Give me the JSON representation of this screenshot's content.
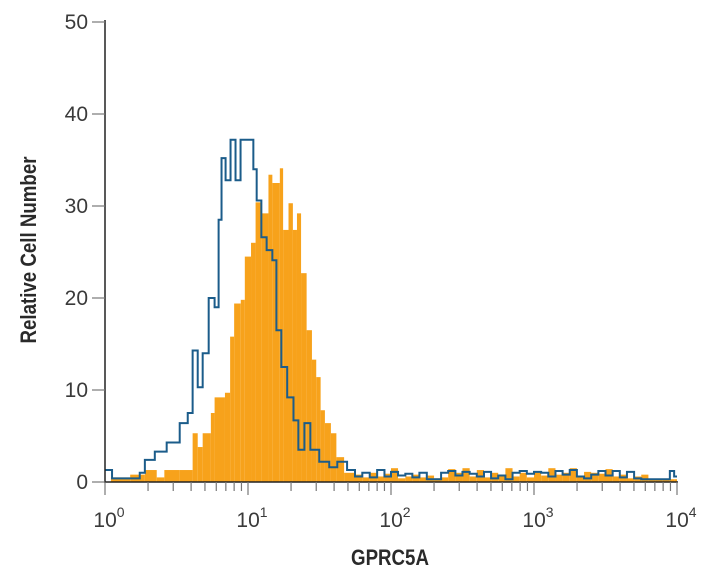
{
  "chart_data": {
    "type": "histogram",
    "title": "",
    "xlabel": "GPRC5A",
    "ylabel": "Relative Cell Number",
    "x_scale": "log",
    "xlim": [
      1,
      10000
    ],
    "ylim": [
      0,
      50
    ],
    "grid": false,
    "y_ticks": [
      "0",
      "10",
      "20",
      "30",
      "40",
      "50"
    ],
    "x_ticks": [
      {
        "base": "10",
        "exp": "0"
      },
      {
        "base": "10",
        "exp": "1"
      },
      {
        "base": "10",
        "exp": "2"
      },
      {
        "base": "10",
        "exp": "3"
      },
      {
        "base": "10",
        "exp": "4"
      }
    ],
    "series": [
      {
        "style": "filled",
        "color": "#F7A21B",
        "points": [
          [
            1.1,
            0.5
          ],
          [
            1.5,
            0.8
          ],
          [
            1.9,
            1.3
          ],
          [
            2.3,
            0.5
          ],
          [
            2.6,
            1.3
          ],
          [
            3.3,
            1.3
          ],
          [
            4.1,
            5.3
          ],
          [
            4.45,
            3.8
          ],
          [
            4.82,
            5.3
          ],
          [
            5.5,
            7.5
          ],
          [
            5.84,
            9.2
          ],
          [
            6.9,
            9.7
          ],
          [
            7.5,
            15.8
          ],
          [
            8.0,
            19.4
          ],
          [
            8.9,
            19.8
          ],
          [
            9.5,
            24.5
          ],
          [
            10.5,
            26
          ],
          [
            11.3,
            30.4
          ],
          [
            12.4,
            29.2
          ],
          [
            13.9,
            33.4
          ],
          [
            14.8,
            32.5
          ],
          [
            16.7,
            34.1
          ],
          [
            17.6,
            27.4
          ],
          [
            19.2,
            30.3
          ],
          [
            20.6,
            27.4
          ],
          [
            22.0,
            29.2
          ],
          [
            23.5,
            22.7
          ],
          [
            25.7,
            16.5
          ],
          [
            28.0,
            13.3
          ],
          [
            30.0,
            11.4
          ],
          [
            32.2,
            7.8
          ],
          [
            34.5,
            6.4
          ],
          [
            38,
            5.3
          ],
          [
            41.5,
            2.7
          ],
          [
            47,
            1.0
          ],
          [
            56,
            0.8
          ],
          [
            63,
            0.5
          ],
          [
            71,
            1.0
          ],
          [
            80,
            0.6
          ],
          [
            90,
            0.9
          ],
          [
            100,
            1.5
          ],
          [
            112,
            0.4
          ],
          [
            126,
            0.6
          ],
          [
            141,
            0.8
          ],
          [
            158,
            0.5
          ],
          [
            178,
            0.7
          ],
          [
            200,
            0.4
          ],
          [
            224,
            0.5
          ],
          [
            251,
            1.4
          ],
          [
            282,
            1.0
          ],
          [
            316,
            1.5
          ],
          [
            355,
            0.6
          ],
          [
            398,
            1.3
          ],
          [
            447,
            0.5
          ],
          [
            501,
            1.0
          ],
          [
            562,
            0.8
          ],
          [
            631,
            1.5
          ],
          [
            708,
            0.6
          ],
          [
            794,
            1.0
          ],
          [
            891,
            0.5
          ],
          [
            1000,
            1.2
          ],
          [
            1122,
            0.7
          ],
          [
            1259,
            1.5
          ],
          [
            1413,
            0.8
          ],
          [
            1585,
            1.0
          ],
          [
            1778,
            1.5
          ],
          [
            1995,
            0.6
          ],
          [
            2239,
            1.1
          ],
          [
            2512,
            1.0
          ],
          [
            2818,
            0.9
          ],
          [
            3162,
            1.4
          ],
          [
            3548,
            0.6
          ],
          [
            3981,
            0.8
          ],
          [
            4467,
            0.4
          ],
          [
            5012,
            0.6
          ],
          [
            5623,
            0.8
          ],
          [
            6310,
            0.3
          ],
          [
            7079,
            0.3
          ],
          [
            7943,
            0.3
          ],
          [
            8913,
            0.3
          ],
          [
            9550,
            0.3
          ]
        ]
      },
      {
        "style": "outline",
        "color": "#1B5C8A",
        "points": [
          [
            1.0,
            1.3
          ],
          [
            1.12,
            0.4
          ],
          [
            1.75,
            1.0
          ],
          [
            1.9,
            2.4
          ],
          [
            2.23,
            3.3
          ],
          [
            2.7,
            4.3
          ],
          [
            3.33,
            6.4
          ],
          [
            3.79,
            7.5
          ],
          [
            4.1,
            14.3
          ],
          [
            4.45,
            10.3
          ],
          [
            4.82,
            14
          ],
          [
            5.31,
            20
          ],
          [
            5.84,
            19
          ],
          [
            6.23,
            28.5
          ],
          [
            6.53,
            35.2
          ],
          [
            6.97,
            32.8
          ],
          [
            7.55,
            37.2
          ],
          [
            8.18,
            32.8
          ],
          [
            8.87,
            37.2
          ],
          [
            10.4,
            37.2
          ],
          [
            10.9,
            34
          ],
          [
            11.5,
            30.6
          ],
          [
            12.4,
            26.6
          ],
          [
            13.5,
            25.2
          ],
          [
            14.8,
            24.1
          ],
          [
            15.8,
            16.5
          ],
          [
            17.1,
            12.5
          ],
          [
            18.8,
            9.2
          ],
          [
            20.8,
            6.7
          ],
          [
            22.5,
            3.5
          ],
          [
            24.8,
            6.4
          ],
          [
            27.3,
            3.5
          ],
          [
            31.5,
            2.2
          ],
          [
            37.0,
            1.6
          ],
          [
            42.1,
            2.2
          ],
          [
            49.3,
            1.3
          ],
          [
            56,
            0.6
          ],
          [
            63,
            1.0
          ],
          [
            71,
            0.5
          ],
          [
            80,
            1.3
          ],
          [
            90,
            0.6
          ],
          [
            100,
            1.1
          ],
          [
            112,
            0.7
          ],
          [
            126,
            0.9
          ],
          [
            141,
            0.5
          ],
          [
            158,
            1.0
          ],
          [
            178,
            0.3
          ],
          [
            200,
            0.3
          ],
          [
            224,
            1.0
          ],
          [
            251,
            1.2
          ],
          [
            282,
            0.7
          ],
          [
            316,
            1.1
          ],
          [
            355,
            0.9
          ],
          [
            398,
            0.6
          ],
          [
            447,
            1.1
          ],
          [
            501,
            0.4
          ],
          [
            562,
            0.7
          ],
          [
            631,
            0.3
          ],
          [
            708,
            1.0
          ],
          [
            794,
            1.2
          ],
          [
            891,
            0.9
          ],
          [
            1000,
            1.1
          ],
          [
            1122,
            1.0
          ],
          [
            1259,
            0.6
          ],
          [
            1413,
            1.2
          ],
          [
            1585,
            0.8
          ],
          [
            1778,
            1.3
          ],
          [
            1995,
            0.6
          ],
          [
            2239,
            0.4
          ],
          [
            2512,
            0.8
          ],
          [
            2818,
            1.2
          ],
          [
            3162,
            0.7
          ],
          [
            3548,
            1.2
          ],
          [
            3981,
            0.5
          ],
          [
            4467,
            1.1
          ],
          [
            5012,
            0.4
          ],
          [
            5623,
            0.3
          ],
          [
            6310,
            0.3
          ],
          [
            7079,
            0.3
          ],
          [
            7943,
            0.3
          ],
          [
            8913,
            1.2
          ],
          [
            9550,
            0.6
          ]
        ]
      }
    ]
  }
}
